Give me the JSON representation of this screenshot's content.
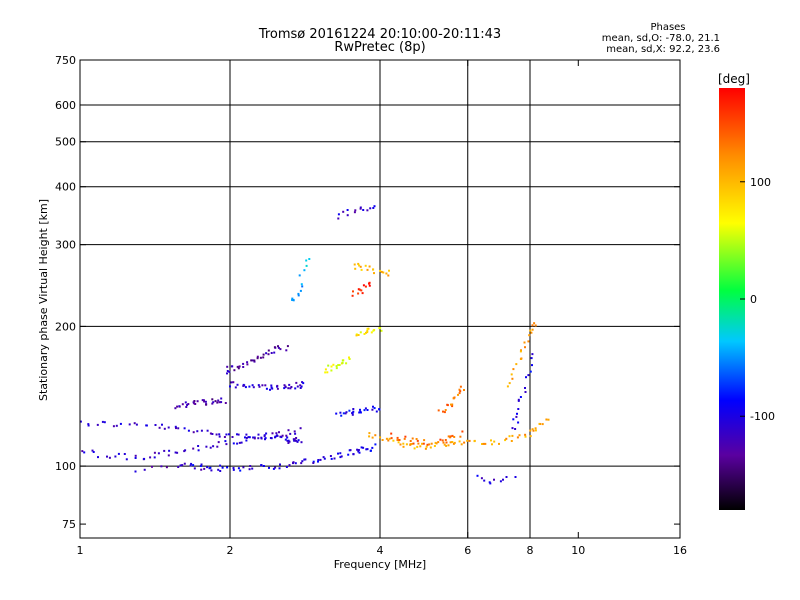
{
  "header": {
    "title": "Tromsø 20161224 20:10:00-20:11:43",
    "subtitle": "RwPretec (8p)"
  },
  "stats": {
    "heading": "Phases",
    "line_o": "mean, sd,O: -78.0, 21.1",
    "line_x": "mean, sd,X:  92.2, 23.6"
  },
  "colorbar": {
    "unit": "[deg]",
    "ticks": [
      {
        "label": "100",
        "value": 100
      },
      {
        "label": "0",
        "value": 0
      },
      {
        "label": "-100",
        "value": -100
      }
    ],
    "range": [
      -180,
      180
    ]
  },
  "chart_data": {
    "type": "scatter",
    "xlabel": "Frequency [MHz]",
    "ylabel": "Stationary phase Virtual Height [km]",
    "xscale": "log",
    "yscale": "log",
    "xlim": [
      1,
      16
    ],
    "ylim": [
      70,
      750
    ],
    "x_ticks": [
      {
        "label": "1",
        "value": 1
      },
      {
        "label": "2",
        "value": 2
      },
      {
        "label": "4",
        "value": 4
      },
      {
        "label": "6",
        "value": 6
      },
      {
        "label": "8",
        "value": 8
      },
      {
        "label": "10",
        "value": 10
      },
      {
        "label": "16",
        "value": 16
      }
    ],
    "y_ticks": [
      {
        "label": "75",
        "value": 75
      },
      {
        "label": "100",
        "value": 100
      },
      {
        "label": "200",
        "value": 200
      },
      {
        "label": "300",
        "value": 300
      },
      {
        "label": "400",
        "value": 400
      },
      {
        "label": "500",
        "value": 500
      },
      {
        "label": "600",
        "value": 600
      },
      {
        "label": "750",
        "value": 750
      }
    ],
    "grid": true,
    "x_gridlines": [
      2,
      4,
      6,
      8
    ],
    "y_gridlines": [
      100,
      200,
      300,
      400,
      500,
      600
    ],
    "traces": [
      {
        "x": [
          1.0,
          1.4,
          1.8,
          2.2,
          2.6,
          2.75
        ],
        "y": [
          124,
          122,
          118,
          116,
          114,
          113
        ],
        "phase": -110,
        "count": 70
      },
      {
        "x": [
          1.0,
          1.3,
          1.6,
          2.0,
          2.4,
          2.75
        ],
        "y": [
          107,
          104,
          108,
          112,
          116,
          119
        ],
        "phase": -112,
        "count": 60
      },
      {
        "x": [
          1.6,
          2.0,
          2.5,
          3.0,
          3.5,
          3.9
        ],
        "y": [
          100,
          99,
          100,
          103,
          107,
          110
        ],
        "phase": -100,
        "count": 70
      },
      {
        "x": [
          1.55,
          1.75,
          1.95
        ],
        "y": [
          135,
          137,
          138
        ],
        "phase": -130,
        "count": 30
      },
      {
        "x": [
          1.95,
          2.15,
          2.35,
          2.6
        ],
        "y": [
          160,
          165,
          175,
          180
        ],
        "phase": -125,
        "count": 35
      },
      {
        "x": [
          2.0,
          2.3,
          2.6,
          2.8
        ],
        "y": [
          150,
          148,
          148,
          150
        ],
        "phase": -110,
        "count": 40
      },
      {
        "x": [
          3.3,
          3.6,
          4.0
        ],
        "y": [
          130,
          131,
          133
        ],
        "phase": -95,
        "count": 25
      },
      {
        "x": [
          3.8,
          4.3,
          4.8,
          5.4,
          6.0,
          7.0,
          8.0,
          8.6
        ],
        "y": [
          118,
          112,
          110,
          112,
          113,
          113,
          117,
          125
        ],
        "phase": 110,
        "count": 70
      },
      {
        "x": [
          4.2,
          4.7,
          5.3,
          5.8
        ],
        "y": [
          116,
          113,
          112,
          118
        ],
        "phase": 140,
        "count": 30
      },
      {
        "x": [
          5.3,
          5.6,
          5.9
        ],
        "y": [
          130,
          138,
          148
        ],
        "phase": 130,
        "count": 18
      },
      {
        "x": [
          7.3,
          7.6,
          7.9,
          8.2
        ],
        "y": [
          150,
          170,
          190,
          205
        ],
        "phase": 115,
        "count": 20
      },
      {
        "x": [
          7.4,
          7.7,
          8.1
        ],
        "y": [
          120,
          140,
          175
        ],
        "phase": -100,
        "count": 18
      },
      {
        "x": [
          3.1,
          3.3,
          3.45
        ],
        "y": [
          160,
          165,
          170
        ],
        "phase": 60,
        "count": 18
      },
      {
        "x": [
          3.6,
          3.8,
          4.0
        ],
        "y": [
          190,
          195,
          198
        ],
        "phase": 75,
        "count": 16
      },
      {
        "x": [
          3.55,
          3.8,
          4.2
        ],
        "y": [
          270,
          265,
          260
        ],
        "phase": 100,
        "count": 18
      },
      {
        "x": [
          3.5,
          3.7,
          3.85
        ],
        "y": [
          236,
          240,
          250
        ],
        "phase": 170,
        "count": 12
      },
      {
        "x": [
          3.3,
          3.6,
          3.9
        ],
        "y": [
          345,
          355,
          365
        ],
        "phase": -110,
        "count": 14
      },
      {
        "x": [
          2.65,
          2.75,
          2.85
        ],
        "y": [
          225,
          240,
          280
        ],
        "phase": -40,
        "count": 14
      },
      {
        "x": [
          6.3,
          6.8,
          7.4
        ],
        "y": [
          94,
          93,
          94
        ],
        "phase": -105,
        "count": 10
      },
      {
        "x": [
          1.3,
          1.6,
          1.9
        ],
        "y": [
          98,
          100,
          99
        ],
        "phase": -115,
        "count": 12
      }
    ]
  }
}
